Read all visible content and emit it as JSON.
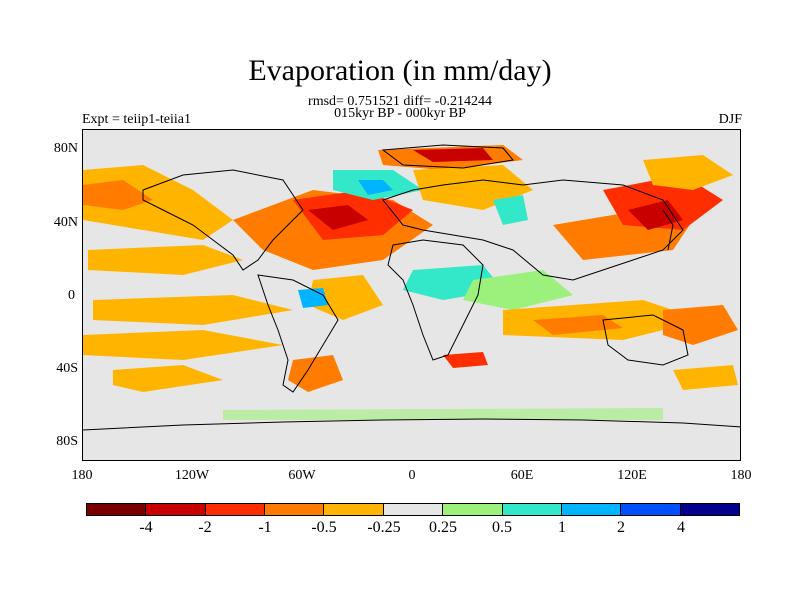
{
  "title": "Evaporation (in mm/day)",
  "stats": "rmsd= 0.751521 diff= -0.214244",
  "period": "015kyr BP - 000kyr BP",
  "expt": "Expt = teiip1-teiia1",
  "season": "DJF",
  "axes": {
    "y_ticks": [
      "80N",
      "40N",
      "0",
      "40S",
      "80S"
    ],
    "x_ticks": [
      "180",
      "120W",
      "60W",
      "0",
      "60E",
      "120E",
      "180"
    ]
  },
  "colorbar": {
    "colors": [
      "#7a0000",
      "#c80000",
      "#ff2e00",
      "#ff7c00",
      "#ffb400",
      "#e6e6e6",
      "#9cf07c",
      "#33e8c8",
      "#00b4ff",
      "#0050ff",
      "#00008c"
    ],
    "labels": [
      "-4",
      "-2",
      "-1",
      "-0.5",
      "-0.25",
      "0.25",
      "0.5",
      "1",
      "2",
      "4"
    ]
  }
}
